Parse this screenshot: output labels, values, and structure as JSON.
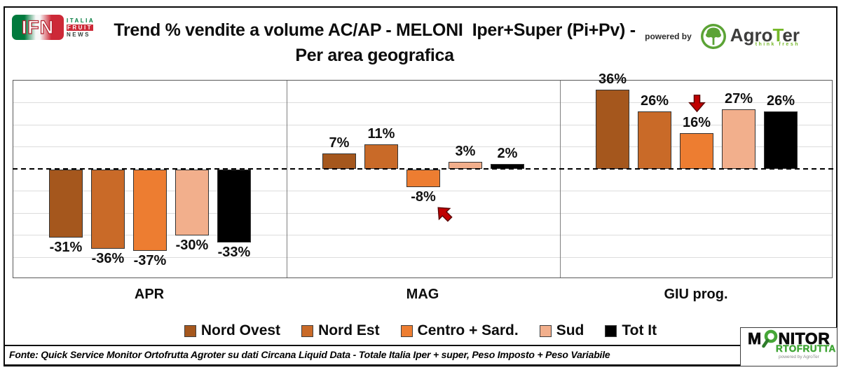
{
  "header": {
    "ifn_logo": {
      "acronym": "IFN",
      "italia": "ITALIA",
      "fruit": "FRUIT",
      "news": "NEWS"
    },
    "title_line1": "Trend % vendite a volume AC/AP - MELONI  Iper+Super (Pi+Pv) -",
    "title_line2": "Per area geografica",
    "powered_by": "powered by",
    "agroter": {
      "name_prefix": "Agro",
      "name_t": "T",
      "name_suffix": "er",
      "tagline": "think fresh"
    }
  },
  "chart_data": {
    "type": "bar",
    "title": "Trend % vendite a volume AC/AP - MELONI Iper+Super (Pi+Pv) - Per area geografica",
    "unit": "%",
    "categories": [
      "APR",
      "MAG",
      "GIU prog."
    ],
    "series": [
      {
        "name": "Nord Ovest",
        "color": "#A5571D",
        "values": [
          -31,
          7,
          36
        ]
      },
      {
        "name": "Nord Est",
        "color": "#C96A28",
        "values": [
          -36,
          11,
          26
        ]
      },
      {
        "name": "Centro + Sard.",
        "color": "#ED7D31",
        "values": [
          -37,
          -8,
          16
        ]
      },
      {
        "name": "Sud",
        "color": "#F2AF8C",
        "values": [
          -30,
          3,
          27
        ]
      },
      {
        "name": "Tot It",
        "color": "#000000",
        "values": [
          -33,
          2,
          26
        ]
      }
    ],
    "ylim": [
      -50,
      40
    ],
    "gridline_step": 10,
    "grid": true,
    "legend_position": "bottom",
    "zero_line": "dashed",
    "annotations": [
      {
        "type": "arrow-up-left",
        "category": "MAG",
        "series": "Centro + Sard.",
        "value": -8,
        "color": "#C00000"
      },
      {
        "type": "arrow-down",
        "category": "GIU prog.",
        "series": "Centro + Sard.",
        "value": 16,
        "color": "#C00000"
      }
    ]
  },
  "footer": {
    "source": "Fonte: Quick Service Monitor Ortofrutta Agroter su dati Circana Liquid Data - Totale Italia Iper + super, Peso Imposto + Peso Variabile",
    "monitor_logo": {
      "line1_prefix": "M",
      "line1_suffix": "NITOR",
      "line2": "RTOFRUTTA",
      "powered": "powered by AgroTer"
    }
  }
}
